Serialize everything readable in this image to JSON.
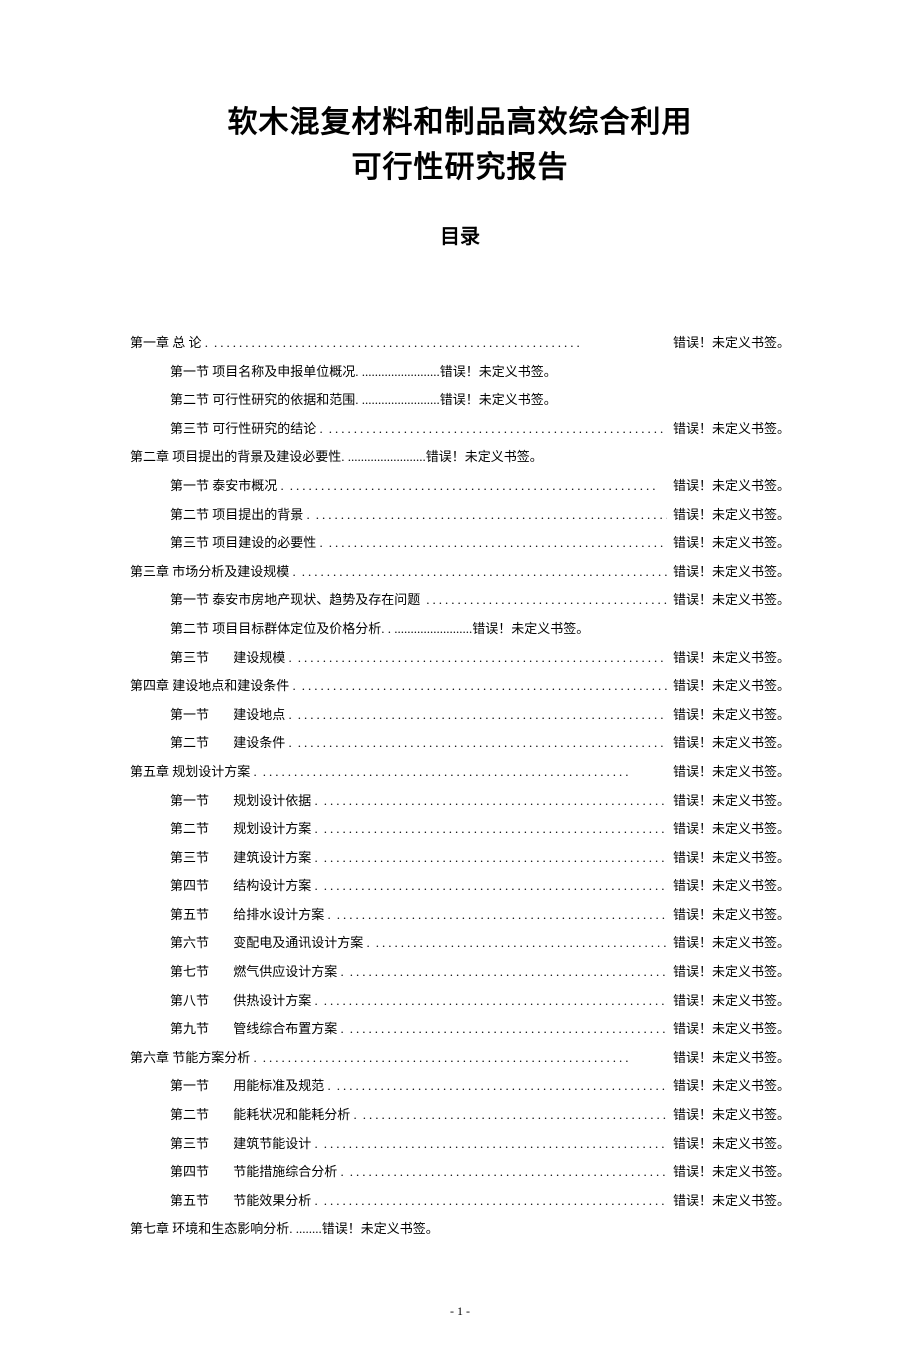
{
  "title_line1": "软木混复材料和制品高效综合利用",
  "title_line2": "可行性研究报告",
  "toc_heading": "目录",
  "error_text": "错误！未定义书签。",
  "page_number": "- 1 -",
  "leader_dots": "...........................................................",
  "colors": {
    "text": "#000000",
    "background": "#ffffff"
  },
  "typography": {
    "title_fontsize": 30,
    "toc_heading_fontsize": 20,
    "body_fontsize": 13,
    "footer_fontsize": 12,
    "font_family": "SimSun"
  },
  "toc": [
    {
      "level": 1,
      "label": "第一章 总 论 ."
    },
    {
      "level": 2,
      "label": "第一节 项目名称及申报单位概况",
      "sep": ". ........................"
    },
    {
      "level": 2,
      "label": "第二节 可行性研究的依据和范围",
      "sep": ". ........................"
    },
    {
      "level": 2,
      "label": "第三节 可行性研究的结论 ."
    },
    {
      "level": 1,
      "label": "第二章 项目提出的背景及建设必要性",
      "sep": ". ........................"
    },
    {
      "level": 2,
      "label": "第一节 泰安市概况 ."
    },
    {
      "level": 2,
      "label": "第二节 项目提出的背景 ."
    },
    {
      "level": 2,
      "label": "第三节 项目建设的必要性 ."
    },
    {
      "level": 1,
      "label": "第三章 市场分析及建设规模 ."
    },
    {
      "level": 2,
      "label": "第一节 泰安市房地产现状、趋势及存在问题"
    },
    {
      "level": 2,
      "label": "第二节 项目目标群体定位及价格分析",
      "sep": ". . ........................"
    },
    {
      "level": 2,
      "num": "第三节",
      "label": "建设规模 ."
    },
    {
      "level": 1,
      "label": "第四章 建设地点和建设条件 ."
    },
    {
      "level": 2,
      "num": "第一节",
      "label": "建设地点 ."
    },
    {
      "level": 2,
      "num": "第二节",
      "label": "建设条件 ."
    },
    {
      "level": 1,
      "label": "第五章 规划设计方案 ."
    },
    {
      "level": 2,
      "num": "第一节",
      "label": "规划设计依据   ."
    },
    {
      "level": 2,
      "num": "第二节",
      "label": "规划设计方案   ."
    },
    {
      "level": 2,
      "num": "第三节",
      "label": "建筑设计方案   ."
    },
    {
      "level": 2,
      "num": "第四节",
      "label": "结构设计方案   ."
    },
    {
      "level": 2,
      "num": "第五节",
      "label": "给排水设计方案 .    "
    },
    {
      "level": 2,
      "num": "第六节",
      "label": "变配电及通讯设计方案 ."
    },
    {
      "level": 2,
      "num": "第七节",
      "label": "燃气供应设计方案   ."
    },
    {
      "level": 2,
      "num": "第八节",
      "label": "供热设计方案 ."
    },
    {
      "level": 2,
      "num": "第九节",
      "label": "管线综合布置方案   ."
    },
    {
      "level": 1,
      "label": "第六章 节能方案分析 ."
    },
    {
      "level": 2,
      "num": "第一节",
      "label": "用能标准及规范 .    "
    },
    {
      "level": 2,
      "num": "第二节",
      "label": "能耗状况和能耗分析 ."
    },
    {
      "level": 2,
      "num": "第三节",
      "label": "建筑节能设计 ."
    },
    {
      "level": 2,
      "num": "第四节",
      "label": "节能措施综合分析   ."
    },
    {
      "level": 2,
      "num": "第五节",
      "label": "节能效果分析 ."
    },
    {
      "level": 1,
      "label": "第七章 环境和生态影响分析",
      "sep": ". ........"
    }
  ]
}
